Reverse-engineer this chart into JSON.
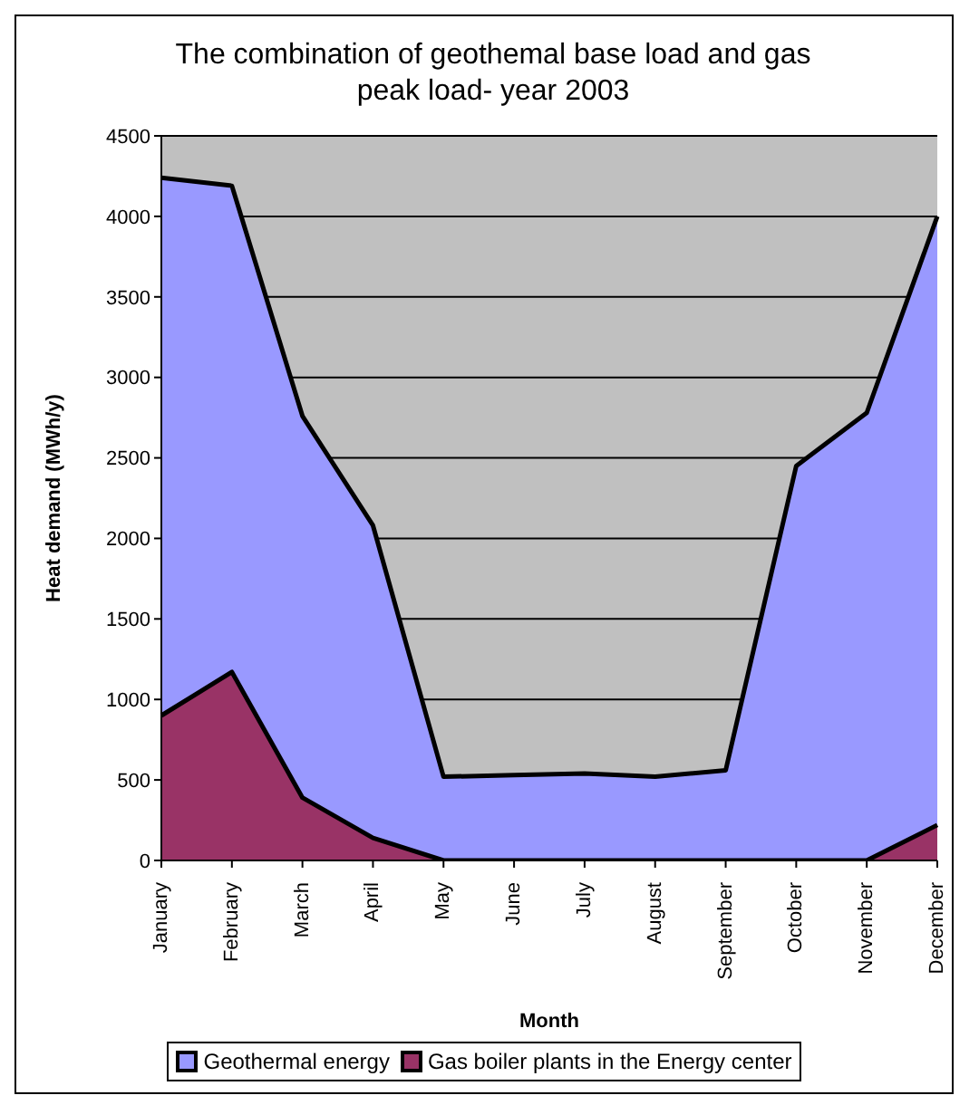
{
  "chart_data": {
    "type": "area",
    "title": "The combination of geothemal base load and gas peak load- year 2003",
    "xlabel": "Month",
    "ylabel": "Heat demand (MWh/y)",
    "categories": [
      "January",
      "February",
      "March",
      "April",
      "May",
      "June",
      "July",
      "August",
      "September",
      "October",
      "November",
      "December"
    ],
    "series": [
      {
        "name": "Geothermal energy",
        "color": "#9999ff",
        "values": [
          4240,
          4190,
          2760,
          2080,
          520,
          530,
          540,
          520,
          560,
          2450,
          2780,
          4000
        ]
      },
      {
        "name": "Gas boiler plants in the Energy center",
        "color": "#993366",
        "values": [
          900,
          1170,
          390,
          140,
          0,
          0,
          0,
          0,
          0,
          0,
          0,
          220
        ]
      }
    ],
    "ylim": [
      0,
      4500
    ],
    "yticks": [
      0,
      500,
      1000,
      1500,
      2000,
      2500,
      3000,
      3500,
      4000,
      4500
    ],
    "grid": "y",
    "legend": "bottom"
  }
}
